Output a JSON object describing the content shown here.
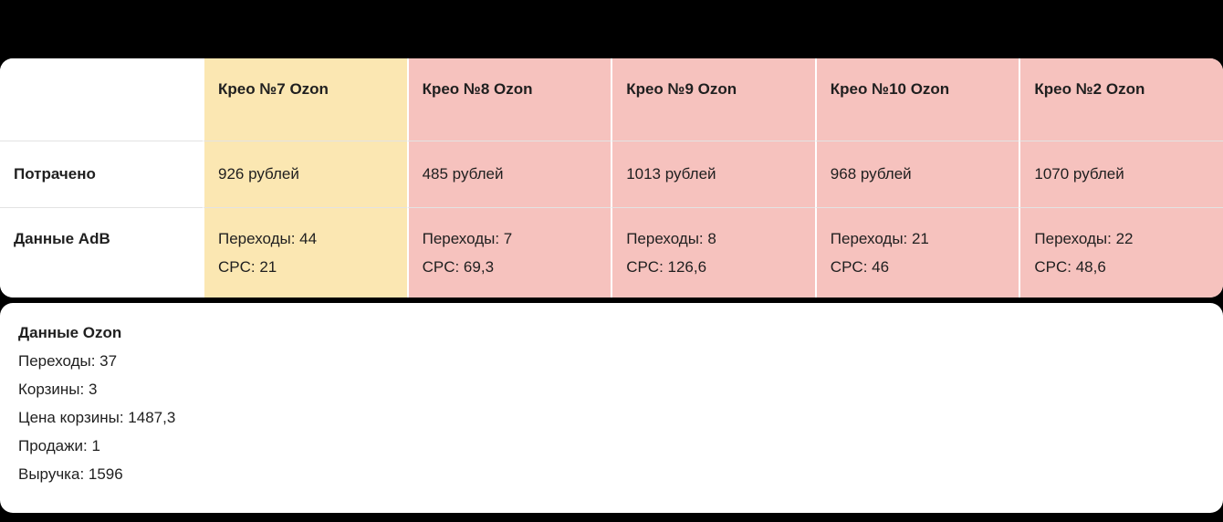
{
  "table": {
    "columns": [
      {
        "label": "Крео №7 Ozon"
      },
      {
        "label": "Крео №8 Ozon"
      },
      {
        "label": "Крео №9 Ozon"
      },
      {
        "label": "Крео №10 Ozon"
      },
      {
        "label": "Крео №2 Ozon"
      }
    ],
    "spent_row": {
      "label": "Потрачено",
      "values": [
        "926 рублей",
        "485 рублей",
        "1013 рублей",
        "968 рублей",
        "1070 рублей"
      ]
    },
    "adb_row": {
      "label": "Данные AdB",
      "cells": [
        {
          "line1": "Переходы: 44",
          "line2": "CPC: 21"
        },
        {
          "line1": "Переходы: 7",
          "line2": "CPC: 69,3"
        },
        {
          "line1": "Переходы: 8",
          "line2": "CPC: 126,6"
        },
        {
          "line1": "Переходы: 21",
          "line2": "CPC: 46"
        },
        {
          "line1": "Переходы: 22",
          "line2": "CPC: 48,6"
        }
      ]
    }
  },
  "ozon_panel": {
    "title": "Данные Ozon",
    "lines": [
      "Переходы: 37",
      "Корзины: 3",
      "Цена корзины: 1487,3",
      "Продажи: 1",
      "Выручка: 1596"
    ]
  },
  "colors": {
    "highlight_yellow": "#FBE7B2",
    "highlight_pink": "#F6C2BE",
    "background": "#000000",
    "panel": "#FFFFFF",
    "text": "#1F1F1F",
    "divider": "#E3E3E3"
  }
}
